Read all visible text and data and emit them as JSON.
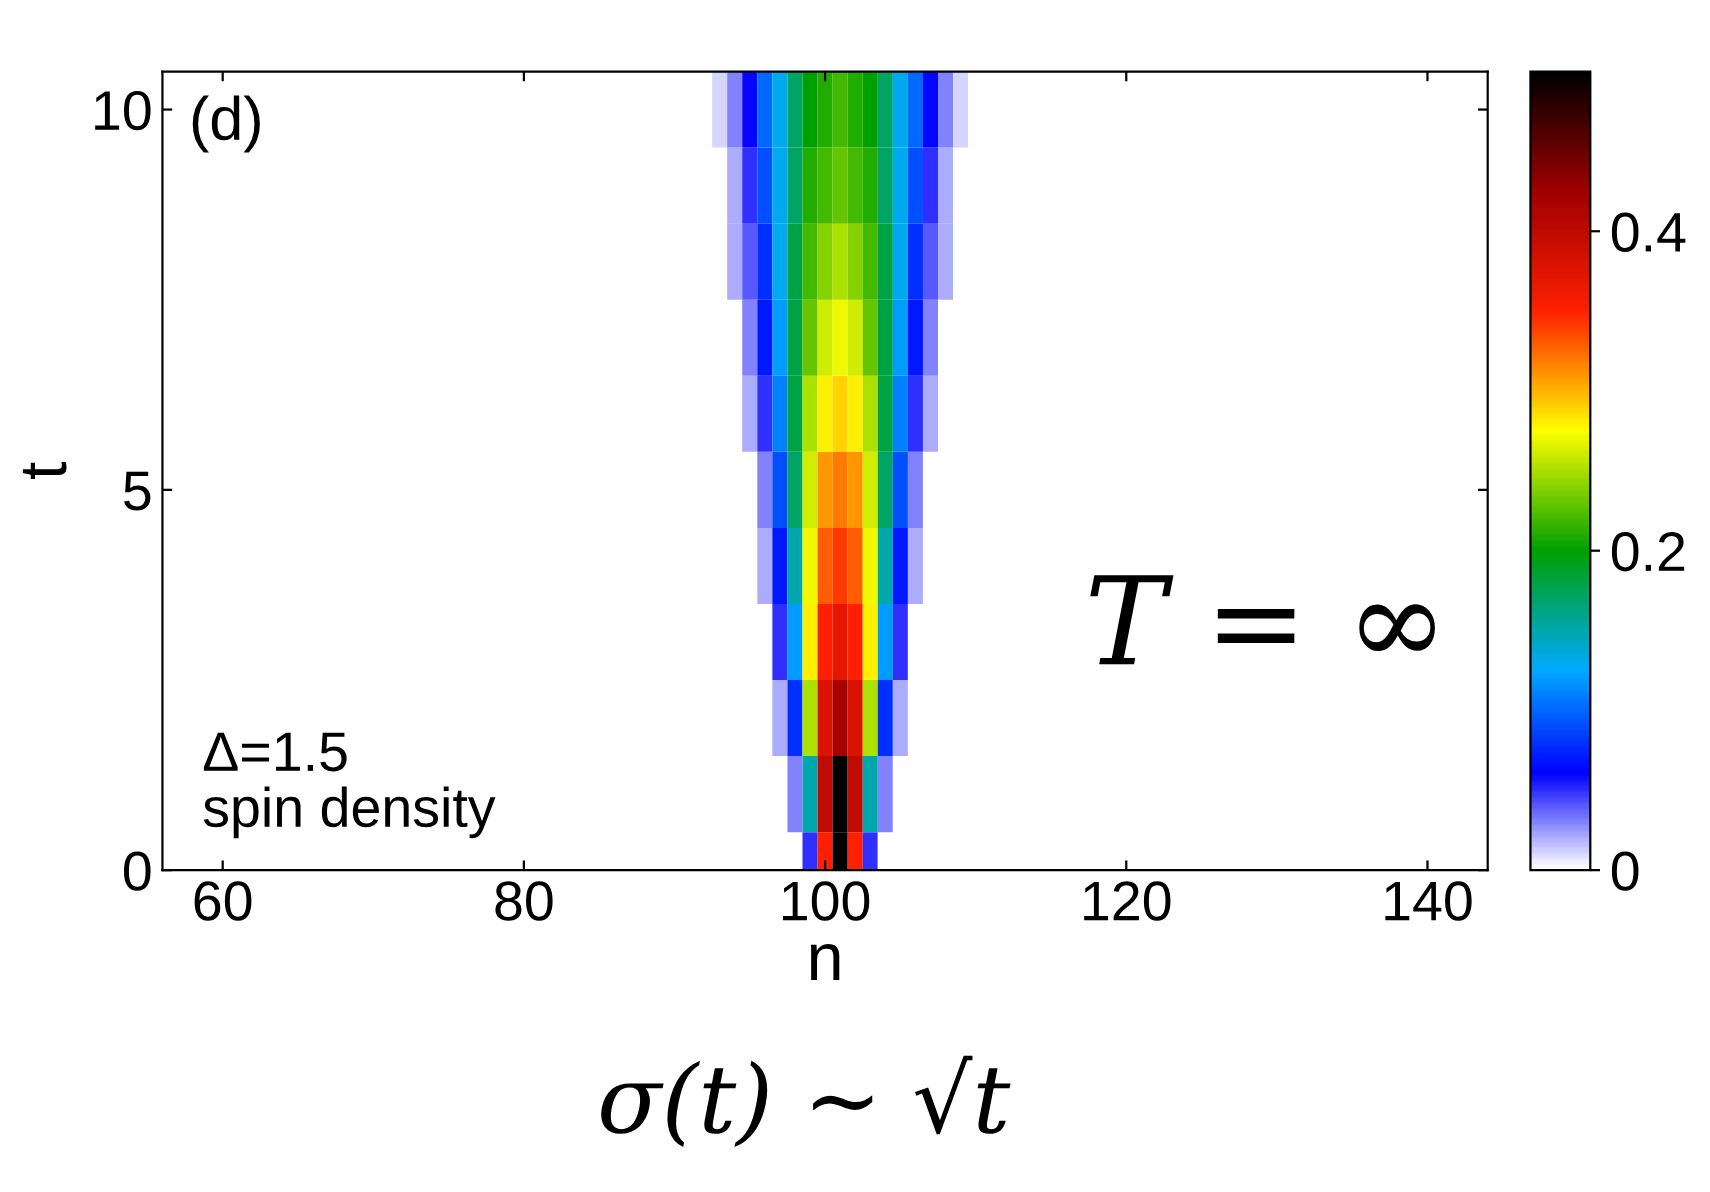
{
  "chart_data": {
    "type": "heatmap",
    "xlabel": "n",
    "ylabel": "t",
    "x": [
      92,
      93,
      94,
      95,
      96,
      97,
      98,
      99,
      100,
      101,
      102,
      103,
      104,
      105,
      106,
      107,
      108,
      109,
      110
    ],
    "y": [
      0,
      1,
      2,
      3,
      4,
      5,
      6,
      7,
      8,
      9,
      10
    ],
    "cells": [
      [
        0,
        0,
        0,
        0,
        0,
        0,
        0,
        0.05,
        0.35,
        0.5,
        0.35,
        0.05,
        0,
        0,
        0,
        0,
        0,
        0,
        0
      ],
      [
        0,
        0,
        0,
        0,
        0,
        0,
        0.03,
        0.15,
        0.4,
        0.5,
        0.4,
        0.15,
        0.03,
        0,
        0,
        0,
        0,
        0,
        0
      ],
      [
        0,
        0,
        0,
        0,
        0,
        0.02,
        0.08,
        0.25,
        0.38,
        0.42,
        0.38,
        0.25,
        0.08,
        0.02,
        0,
        0,
        0,
        0,
        0
      ],
      [
        0,
        0,
        0,
        0,
        0,
        0.05,
        0.12,
        0.28,
        0.35,
        0.37,
        0.35,
        0.28,
        0.12,
        0.05,
        0,
        0,
        0,
        0,
        0
      ],
      [
        0,
        0,
        0,
        0,
        0.02,
        0.07,
        0.15,
        0.27,
        0.33,
        0.34,
        0.33,
        0.27,
        0.15,
        0.07,
        0.02,
        0,
        0,
        0,
        0
      ],
      [
        0,
        0,
        0,
        0,
        0.03,
        0.09,
        0.17,
        0.26,
        0.31,
        0.32,
        0.31,
        0.26,
        0.17,
        0.09,
        0.03,
        0,
        0,
        0,
        0
      ],
      [
        0,
        0,
        0,
        0.02,
        0.05,
        0.11,
        0.18,
        0.25,
        0.28,
        0.29,
        0.28,
        0.25,
        0.18,
        0.11,
        0.05,
        0.02,
        0,
        0,
        0
      ],
      [
        0,
        0,
        0,
        0.03,
        0.07,
        0.12,
        0.18,
        0.23,
        0.26,
        0.27,
        0.26,
        0.23,
        0.18,
        0.12,
        0.07,
        0.03,
        0,
        0,
        0
      ],
      [
        0,
        0,
        0.02,
        0.04,
        0.08,
        0.13,
        0.18,
        0.22,
        0.24,
        0.25,
        0.24,
        0.22,
        0.18,
        0.13,
        0.08,
        0.04,
        0.02,
        0,
        0
      ],
      [
        0,
        0,
        0.02,
        0.05,
        0.09,
        0.13,
        0.17,
        0.21,
        0.22,
        0.23,
        0.22,
        0.21,
        0.17,
        0.13,
        0.09,
        0.05,
        0.02,
        0,
        0
      ],
      [
        0,
        0.01,
        0.03,
        0.06,
        0.1,
        0.13,
        0.17,
        0.2,
        0.21,
        0.22,
        0.21,
        0.2,
        0.17,
        0.13,
        0.1,
        0.06,
        0.03,
        0.01,
        0
      ]
    ],
    "xlim": [
      56,
      144
    ],
    "ylim": [
      0,
      10.5
    ],
    "xticks": [
      60,
      80,
      100,
      120,
      140
    ],
    "yticks": [
      0,
      5,
      10
    ],
    "clim": [
      0,
      0.5
    ],
    "cticks": [
      0,
      0.2,
      0.4
    ],
    "annotations": [
      "(d)",
      "Δ=1.5\nspin density",
      "T = ∞",
      "σ(t) ~ √t"
    ]
  }
}
